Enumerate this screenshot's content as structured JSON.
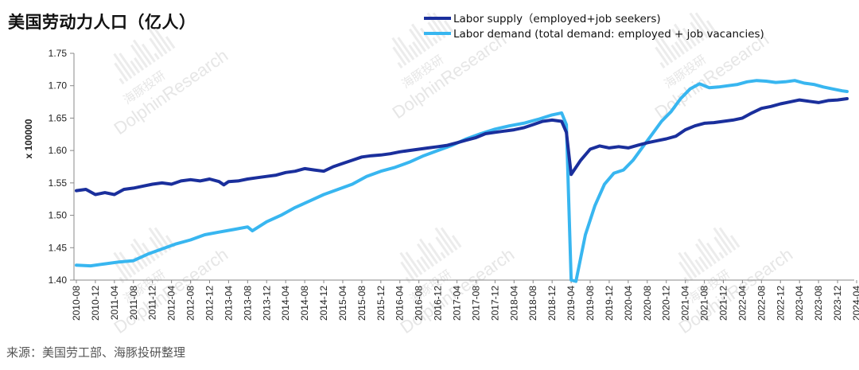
{
  "title": "美国劳动力人口（亿人）",
  "source": "来源：美国劳工部、海豚投研整理",
  "watermark": {
    "text": "DolphinResearch",
    "cn": "海豚投研"
  },
  "colors": {
    "supply": "#1a2f9c",
    "demand": "#38b6f0"
  },
  "chart_data": {
    "type": "line",
    "ylabel": "x 100000",
    "ylim": [
      1.4,
      1.75
    ],
    "yticks": [
      "1.75",
      "1.70",
      "1.65",
      "1.60",
      "1.55",
      "1.50",
      "1.45",
      "1.40"
    ],
    "x_tick_labels": [
      "2010-08",
      "2010-12",
      "2011-04",
      "2011-08",
      "2011-12",
      "2012-04",
      "2012-08",
      "2012-12",
      "2013-04",
      "2013-08",
      "2013-12",
      "2014-04",
      "2014-08",
      "2014-12",
      "2015-04",
      "2015-08",
      "2015-12",
      "2016-04",
      "2016-08",
      "2016-12",
      "2017-04",
      "2017-08",
      "2017-12",
      "2018-04",
      "2018-08",
      "2018-12",
      "2019-04",
      "2019-08",
      "2019-12",
      "2020-04",
      "2020-08",
      "2020-12",
      "2021-04",
      "2021-08",
      "2021-12",
      "2022-04",
      "2022-08",
      "2022-12",
      "2023-04",
      "2023-08",
      "2023-12",
      "2024-04"
    ],
    "x_start": "2010-08",
    "series": [
      {
        "name": "Labor  supply（employed+job seekers)",
        "values": [
          [
            0,
            1.538
          ],
          [
            2,
            1.54
          ],
          [
            4,
            1.532
          ],
          [
            6,
            1.535
          ],
          [
            8,
            1.532
          ],
          [
            10,
            1.54
          ],
          [
            12,
            1.542
          ],
          [
            14,
            1.545
          ],
          [
            16,
            1.548
          ],
          [
            18,
            1.55
          ],
          [
            20,
            1.548
          ],
          [
            22,
            1.553
          ],
          [
            24,
            1.555
          ],
          [
            26,
            1.553
          ],
          [
            28,
            1.556
          ],
          [
            30,
            1.552
          ],
          [
            31,
            1.547
          ],
          [
            32,
            1.552
          ],
          [
            34,
            1.553
          ],
          [
            36,
            1.556
          ],
          [
            38,
            1.558
          ],
          [
            40,
            1.56
          ],
          [
            42,
            1.562
          ],
          [
            44,
            1.566
          ],
          [
            46,
            1.568
          ],
          [
            48,
            1.572
          ],
          [
            50,
            1.57
          ],
          [
            52,
            1.568
          ],
          [
            54,
            1.575
          ],
          [
            56,
            1.58
          ],
          [
            58,
            1.585
          ],
          [
            60,
            1.59
          ],
          [
            62,
            1.592
          ],
          [
            64,
            1.593
          ],
          [
            66,
            1.595
          ],
          [
            68,
            1.598
          ],
          [
            70,
            1.6
          ],
          [
            72,
            1.602
          ],
          [
            74,
            1.604
          ],
          [
            76,
            1.606
          ],
          [
            78,
            1.608
          ],
          [
            80,
            1.612
          ],
          [
            82,
            1.616
          ],
          [
            84,
            1.62
          ],
          [
            86,
            1.626
          ],
          [
            88,
            1.628
          ],
          [
            90,
            1.63
          ],
          [
            92,
            1.632
          ],
          [
            94,
            1.635
          ],
          [
            96,
            1.64
          ],
          [
            98,
            1.645
          ],
          [
            100,
            1.647
          ],
          [
            102,
            1.645
          ],
          [
            103,
            1.628
          ],
          [
            104,
            1.563
          ],
          [
            106,
            1.585
          ],
          [
            108,
            1.602
          ],
          [
            110,
            1.607
          ],
          [
            112,
            1.604
          ],
          [
            114,
            1.606
          ],
          [
            116,
            1.604
          ],
          [
            118,
            1.608
          ],
          [
            120,
            1.612
          ],
          [
            122,
            1.615
          ],
          [
            124,
            1.618
          ],
          [
            126,
            1.622
          ],
          [
            128,
            1.632
          ],
          [
            130,
            1.638
          ],
          [
            132,
            1.642
          ],
          [
            134,
            1.643
          ],
          [
            136,
            1.645
          ],
          [
            138,
            1.647
          ],
          [
            140,
            1.65
          ],
          [
            142,
            1.658
          ],
          [
            144,
            1.665
          ],
          [
            146,
            1.668
          ],
          [
            148,
            1.672
          ],
          [
            150,
            1.675
          ],
          [
            152,
            1.678
          ],
          [
            154,
            1.676
          ],
          [
            156,
            1.674
          ],
          [
            158,
            1.677
          ],
          [
            160,
            1.678
          ],
          [
            162,
            1.68
          ]
        ]
      },
      {
        "name": "Labor demand (total demand: employed + job vacancies)",
        "values": [
          [
            0,
            1.423
          ],
          [
            3,
            1.422
          ],
          [
            6,
            1.425
          ],
          [
            9,
            1.428
          ],
          [
            12,
            1.43
          ],
          [
            15,
            1.44
          ],
          [
            18,
            1.448
          ],
          [
            21,
            1.456
          ],
          [
            24,
            1.462
          ],
          [
            27,
            1.47
          ],
          [
            30,
            1.474
          ],
          [
            33,
            1.478
          ],
          [
            36,
            1.482
          ],
          [
            37,
            1.476
          ],
          [
            40,
            1.49
          ],
          [
            43,
            1.5
          ],
          [
            46,
            1.512
          ],
          [
            49,
            1.522
          ],
          [
            52,
            1.532
          ],
          [
            55,
            1.54
          ],
          [
            58,
            1.548
          ],
          [
            61,
            1.56
          ],
          [
            64,
            1.568
          ],
          [
            67,
            1.574
          ],
          [
            70,
            1.582
          ],
          [
            73,
            1.592
          ],
          [
            76,
            1.6
          ],
          [
            79,
            1.608
          ],
          [
            82,
            1.618
          ],
          [
            85,
            1.626
          ],
          [
            88,
            1.633
          ],
          [
            91,
            1.638
          ],
          [
            94,
            1.642
          ],
          [
            97,
            1.648
          ],
          [
            100,
            1.655
          ],
          [
            102,
            1.658
          ],
          [
            103,
            1.64
          ],
          [
            104,
            1.4
          ],
          [
            105,
            1.398
          ],
          [
            107,
            1.47
          ],
          [
            109,
            1.515
          ],
          [
            111,
            1.548
          ],
          [
            113,
            1.565
          ],
          [
            115,
            1.57
          ],
          [
            117,
            1.585
          ],
          [
            119,
            1.605
          ],
          [
            121,
            1.625
          ],
          [
            123,
            1.645
          ],
          [
            125,
            1.66
          ],
          [
            127,
            1.68
          ],
          [
            129,
            1.695
          ],
          [
            131,
            1.703
          ],
          [
            133,
            1.697
          ],
          [
            135,
            1.698
          ],
          [
            137,
            1.7
          ],
          [
            139,
            1.702
          ],
          [
            141,
            1.706
          ],
          [
            143,
            1.708
          ],
          [
            145,
            1.707
          ],
          [
            147,
            1.705
          ],
          [
            149,
            1.706
          ],
          [
            151,
            1.708
          ],
          [
            153,
            1.704
          ],
          [
            155,
            1.702
          ],
          [
            157,
            1.698
          ],
          [
            159,
            1.695
          ],
          [
            161,
            1.692
          ],
          [
            162,
            1.691
          ]
        ]
      }
    ],
    "legend_position": "top-center",
    "grid": false
  }
}
